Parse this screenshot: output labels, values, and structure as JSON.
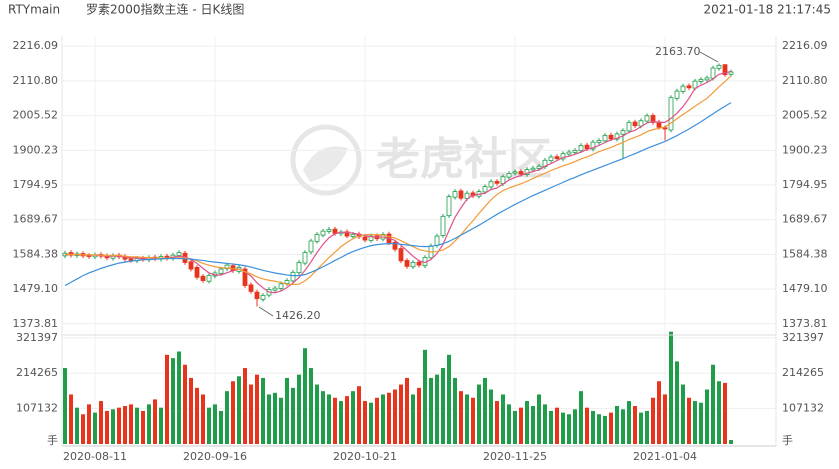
{
  "chart_data": {
    "type": "candlestick",
    "symbol": "RTYmain",
    "title": "罗素2000指数主连 - 日K线图",
    "timestamp": "2021-01-18 21:17:45",
    "watermark": "老虎社区",
    "categories": [
      null,
      null,
      null,
      null,
      null,
      "2020-08-11",
      null,
      null,
      null,
      null,
      null,
      null,
      null,
      null,
      null,
      null,
      null,
      null,
      null,
      null,
      null,
      null,
      null,
      null,
      null,
      "2020-09-16",
      null,
      null,
      null,
      null,
      null,
      null,
      null,
      null,
      null,
      null,
      null,
      null,
      null,
      null,
      null,
      null,
      null,
      null,
      null,
      null,
      null,
      null,
      null,
      null,
      "2020-10-21",
      null,
      null,
      null,
      null,
      null,
      null,
      null,
      null,
      null,
      null,
      null,
      null,
      null,
      null,
      null,
      null,
      null,
      null,
      null,
      null,
      null,
      null,
      null,
      null,
      "2020-11-25",
      null,
      null,
      null,
      null,
      null,
      null,
      null,
      null,
      null,
      null,
      null,
      null,
      null,
      null,
      null,
      null,
      null,
      null,
      null,
      null,
      null,
      null,
      null,
      null,
      "2021-01-04",
      null,
      null,
      null,
      null,
      null,
      null,
      null,
      null,
      null,
      null,
      null
    ],
    "open": [
      1580,
      1590,
      1581,
      1587,
      1581,
      1577,
      1584,
      1580,
      1573,
      1582,
      1578,
      1571,
      1565,
      1573,
      1568,
      1576,
      1570,
      1579,
      1572,
      1581,
      1588,
      1562,
      1545,
      1518,
      1503,
      1519,
      1527,
      1541,
      1550,
      1533,
      1540,
      1492,
      1470,
      1448,
      1461,
      1476,
      1481,
      1496,
      1504,
      1529,
      1558,
      1592,
      1624,
      1643,
      1654,
      1661,
      1647,
      1653,
      1639,
      1646,
      1637,
      1627,
      1641,
      1631,
      1646,
      1621,
      1602,
      1566,
      1547,
      1561,
      1550,
      1574,
      1612,
      1642,
      1702,
      1758,
      1777,
      1754,
      1771,
      1761,
      1774,
      1789,
      1806,
      1799,
      1819,
      1831,
      1836,
      1827,
      1841,
      1845,
      1851,
      1869,
      1881,
      1874,
      1889,
      1894,
      1899,
      1916,
      1904,
      1924,
      1929,
      1946,
      1934,
      1949,
      1959,
      1986,
      1974,
      1989,
      2006,
      1986,
      1969,
      1962,
      2058,
      2079,
      2096,
      2089,
      2109,
      2114,
      2119,
      2149,
      2160,
      2131
    ],
    "high": [
      1595,
      1597,
      1593,
      1594,
      1588,
      1590,
      1591,
      1587,
      1588,
      1589,
      1585,
      1578,
      1579,
      1580,
      1582,
      1583,
      1585,
      1586,
      1589,
      1597,
      1595,
      1569,
      1552,
      1525,
      1527,
      1535,
      1547,
      1559,
      1557,
      1552,
      1547,
      1499,
      1477,
      1467,
      1485,
      1489,
      1502,
      1512,
      1537,
      1567,
      1597,
      1632,
      1652,
      1662,
      1668,
      1668,
      1659,
      1660,
      1652,
      1653,
      1644,
      1647,
      1648,
      1652,
      1653,
      1628,
      1609,
      1573,
      1567,
      1568,
      1582,
      1617,
      1647,
      1707,
      1767,
      1782,
      1784,
      1777,
      1778,
      1782,
      1797,
      1812,
      1813,
      1827,
      1837,
      1842,
      1843,
      1849,
      1853,
      1859,
      1877,
      1887,
      1888,
      1897,
      1902,
      1907,
      1922,
      1923,
      1932,
      1937,
      1952,
      1953,
      1957,
      1967,
      1992,
      1993,
      1997,
      2012,
      2013,
      1993,
      1976,
      2067,
      2087,
      2102,
      2103,
      2117,
      2122,
      2127,
      2157,
      2163.7,
      2162,
      2145
    ],
    "low": [
      1573,
      1575,
      1574,
      1573,
      1571,
      1570,
      1572,
      1567,
      1566,
      1570,
      1563,
      1559,
      1558,
      1562,
      1561,
      1564,
      1563,
      1566,
      1565,
      1574,
      1553,
      1533,
      1508,
      1498,
      1496,
      1512,
      1520,
      1534,
      1528,
      1526,
      1483,
      1465,
      1426.2,
      1441,
      1454,
      1469,
      1474,
      1489,
      1497,
      1522,
      1551,
      1585,
      1617,
      1636,
      1647,
      1641,
      1640,
      1633,
      1632,
      1631,
      1621,
      1620,
      1625,
      1624,
      1613,
      1593,
      1558,
      1541,
      1540,
      1545,
      1543,
      1567,
      1605,
      1635,
      1695,
      1751,
      1748,
      1747,
      1755,
      1754,
      1767,
      1782,
      1793,
      1792,
      1812,
      1824,
      1821,
      1820,
      1834,
      1838,
      1844,
      1862,
      1868,
      1867,
      1882,
      1887,
      1892,
      1898,
      1897,
      1917,
      1922,
      1928,
      1927,
      1875,
      1952,
      1968,
      1967,
      1982,
      1978,
      1963,
      1930,
      1955,
      2051,
      2072,
      2083,
      2082,
      2102,
      2107,
      2112,
      2142,
      2123,
      2124
    ],
    "close": [
      1588,
      1582,
      1586,
      1580,
      1578,
      1583,
      1579,
      1574,
      1581,
      1577,
      1570,
      1566,
      1572,
      1569,
      1575,
      1571,
      1578,
      1573,
      1582,
      1590,
      1560,
      1540,
      1515,
      1505,
      1520,
      1528,
      1540,
      1552,
      1535,
      1545,
      1490,
      1472,
      1450,
      1460,
      1478,
      1482,
      1495,
      1505,
      1530,
      1560,
      1590,
      1625,
      1645,
      1655,
      1660,
      1648,
      1652,
      1640,
      1645,
      1638,
      1628,
      1640,
      1632,
      1645,
      1620,
      1600,
      1565,
      1548,
      1560,
      1552,
      1575,
      1610,
      1640,
      1700,
      1760,
      1775,
      1755,
      1770,
      1762,
      1775,
      1790,
      1805,
      1800,
      1820,
      1830,
      1835,
      1828,
      1842,
      1846,
      1852,
      1870,
      1880,
      1875,
      1890,
      1895,
      1900,
      1915,
      1905,
      1925,
      1930,
      1945,
      1935,
      1950,
      1960,
      1985,
      1975,
      1990,
      2005,
      1985,
      1970,
      1965,
      2060,
      2080,
      2095,
      2090,
      2110,
      2115,
      2120,
      2150,
      2158,
      2130,
      2138
    ],
    "volume": [
      230000,
      150000,
      110000,
      90000,
      120000,
      95000,
      130000,
      100000,
      105000,
      110000,
      115000,
      120000,
      110000,
      100000,
      120000,
      135000,
      110000,
      270000,
      260000,
      280000,
      240000,
      200000,
      170000,
      150000,
      110000,
      120000,
      100000,
      160000,
      190000,
      205000,
      230000,
      180000,
      210000,
      200000,
      150000,
      155000,
      140000,
      200000,
      170000,
      210000,
      290000,
      230000,
      180000,
      160000,
      150000,
      140000,
      130000,
      145000,
      160000,
      175000,
      130000,
      125000,
      140000,
      150000,
      155000,
      165000,
      180000,
      200000,
      150000,
      170000,
      285000,
      200000,
      210000,
      230000,
      270000,
      200000,
      160000,
      150000,
      140000,
      180000,
      200000,
      165000,
      130000,
      150000,
      120000,
      100000,
      110000,
      130000,
      115000,
      150000,
      120000,
      100000,
      110000,
      95000,
      90000,
      105000,
      160000,
      110000,
      100000,
      90000,
      85000,
      95000,
      115000,
      105000,
      130000,
      115000,
      95000,
      100000,
      140000,
      190000,
      150000,
      340000,
      250000,
      180000,
      140000,
      130000,
      125000,
      165000,
      240000,
      190000,
      185000,
      12000
    ],
    "series": [
      {
        "color": "#e0508a",
        "values": [
          1584,
          1584,
          1584,
          1582,
          1583,
          1582,
          1581,
          1579,
          1579,
          1579,
          1576,
          1574,
          1574,
          1571,
          1570,
          1571,
          1573,
          1573,
          1576,
          1579,
          1577,
          1569,
          1557,
          1542,
          1528,
          1522,
          1522,
          1529,
          1535,
          1540,
          1532,
          1519,
          1498,
          1483,
          1470,
          1468,
          1473,
          1484,
          1498,
          1514,
          1536,
          1562,
          1590,
          1615,
          1635,
          1647,
          1652,
          1651,
          1649,
          1645,
          1641,
          1638,
          1637,
          1637,
          1633,
          1627,
          1612,
          1596,
          1579,
          1565,
          1560,
          1569,
          1587,
          1615,
          1657,
          1697,
          1726,
          1752,
          1764,
          1767,
          1770,
          1781,
          1786,
          1798,
          1810,
          1818,
          1824,
          1831,
          1836,
          1841,
          1852,
          1860,
          1869,
          1879,
          1882,
          1888,
          1895,
          1903,
          1908,
          1915,
          1924,
          1932,
          1937,
          1944,
          1955,
          1961,
          1972,
          1983,
          1988,
          1985,
          1985,
          1997,
          2013,
          2033,
          2058,
          2088,
          2098,
          2106,
          2117,
          2131,
          2135,
          2140
        ]
      },
      {
        "color": "#f29a38",
        "values": [
          1584,
          1584,
          1584,
          1583,
          1583,
          1583,
          1582,
          1581,
          1581,
          1581,
          1579,
          1577,
          1577,
          1575,
          1575,
          1574,
          1573,
          1573,
          1573,
          1574,
          1574,
          1571,
          1565,
          1557,
          1552,
          1547,
          1544,
          1543,
          1541,
          1539,
          1532,
          1525,
          1516,
          1510,
          1506,
          1503,
          1499,
          1494,
          1493,
          1494,
          1504,
          1519,
          1538,
          1557,
          1575,
          1591,
          1608,
          1621,
          1632,
          1640,
          1644,
          1645,
          1644,
          1643,
          1639,
          1634,
          1626,
          1617,
          1608,
          1599,
          1595,
          1592,
          1593,
          1598,
          1608,
          1625,
          1644,
          1666,
          1687,
          1709,
          1730,
          1750,
          1766,
          1778,
          1786,
          1792,
          1799,
          1806,
          1815,
          1823,
          1831,
          1839,
          1846,
          1853,
          1859,
          1866,
          1874,
          1880,
          1888,
          1896,
          1903,
          1909,
          1917,
          1924,
          1933,
          1940,
          1947,
          1957,
          1963,
          1967,
          1971,
          1983,
          1996,
          2009,
          2021,
          2034,
          2046,
          2058,
          2075,
          2093,
          2109,
          2126
        ]
      },
      {
        "color": "#3b8fdc",
        "values": [
          1490,
          1500,
          1510,
          1520,
          1528,
          1535,
          1542,
          1548,
          1553,
          1558,
          1561,
          1564,
          1566,
          1568,
          1569,
          1570,
          1571,
          1572,
          1572,
          1572,
          1571,
          1570,
          1568,
          1566,
          1563,
          1561,
          1559,
          1557,
          1555,
          1553,
          1550,
          1546,
          1541,
          1536,
          1532,
          1528,
          1525,
          1522,
          1520,
          1520,
          1523,
          1530,
          1538,
          1547,
          1556,
          1566,
          1575,
          1585,
          1593,
          1600,
          1606,
          1611,
          1614,
          1616,
          1617,
          1617,
          1615,
          1613,
          1611,
          1609,
          1608,
          1609,
          1612,
          1617,
          1624,
          1633,
          1643,
          1653,
          1663,
          1673,
          1684,
          1695,
          1706,
          1716,
          1726,
          1736,
          1745,
          1754,
          1763,
          1771,
          1779,
          1787,
          1795,
          1803,
          1811,
          1818,
          1826,
          1833,
          1840,
          1847,
          1854,
          1861,
          1868,
          1875,
          1883,
          1890,
          1898,
          1906,
          1913,
          1920,
          1927,
          1936,
          1945,
          1955,
          1965,
          1976,
          1987,
          1999,
          2011,
          2023,
          2034,
          2045
        ]
      }
    ],
    "ylim": [
      1355,
      2235
    ],
    "yticks": [
      {
        "value": 1373.81,
        "label": "1373.81"
      },
      {
        "value": 1479.1,
        "label": "1479.10"
      },
      1584.38,
      1689.67,
      1794.95,
      1900.23,
      2005.52,
      {
        "value": 2110.8,
        "label": "2110.80"
      },
      2216.09
    ],
    "volume_ylim": [
      0,
      330000
    ],
    "volume_yticks": [
      107132,
      214265,
      321397
    ],
    "volume_unit": "手",
    "high_label": "2163.70",
    "low_label": "1426.20",
    "up_color": "#1f9d4b",
    "down_color": "#e8341c",
    "grid": true
  }
}
